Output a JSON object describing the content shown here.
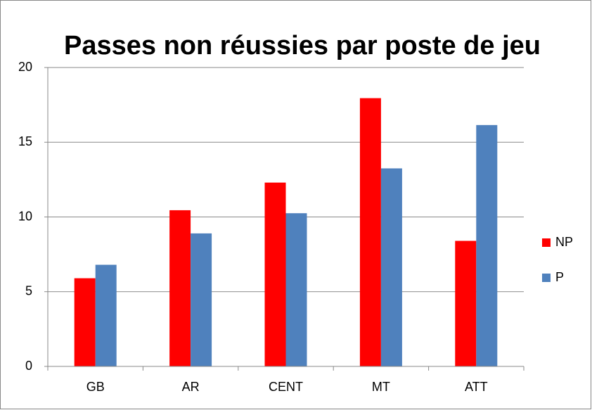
{
  "chart_data": {
    "type": "bar",
    "title": "Passes non réussies par poste de jeu",
    "categories": [
      "GB",
      "AR",
      "CENT",
      "MT",
      "ATT"
    ],
    "series": [
      {
        "name": "NP",
        "color": "#ff0000",
        "values": [
          5.9,
          10.45,
          12.3,
          17.95,
          8.4
        ]
      },
      {
        "name": "P",
        "color": "#4f81bd",
        "values": [
          6.8,
          8.9,
          10.25,
          13.25,
          16.15
        ]
      }
    ],
    "ylim": [
      0,
      20
    ],
    "yticks": [
      0,
      5,
      10,
      15,
      20
    ],
    "grid": true,
    "legend": "right"
  }
}
